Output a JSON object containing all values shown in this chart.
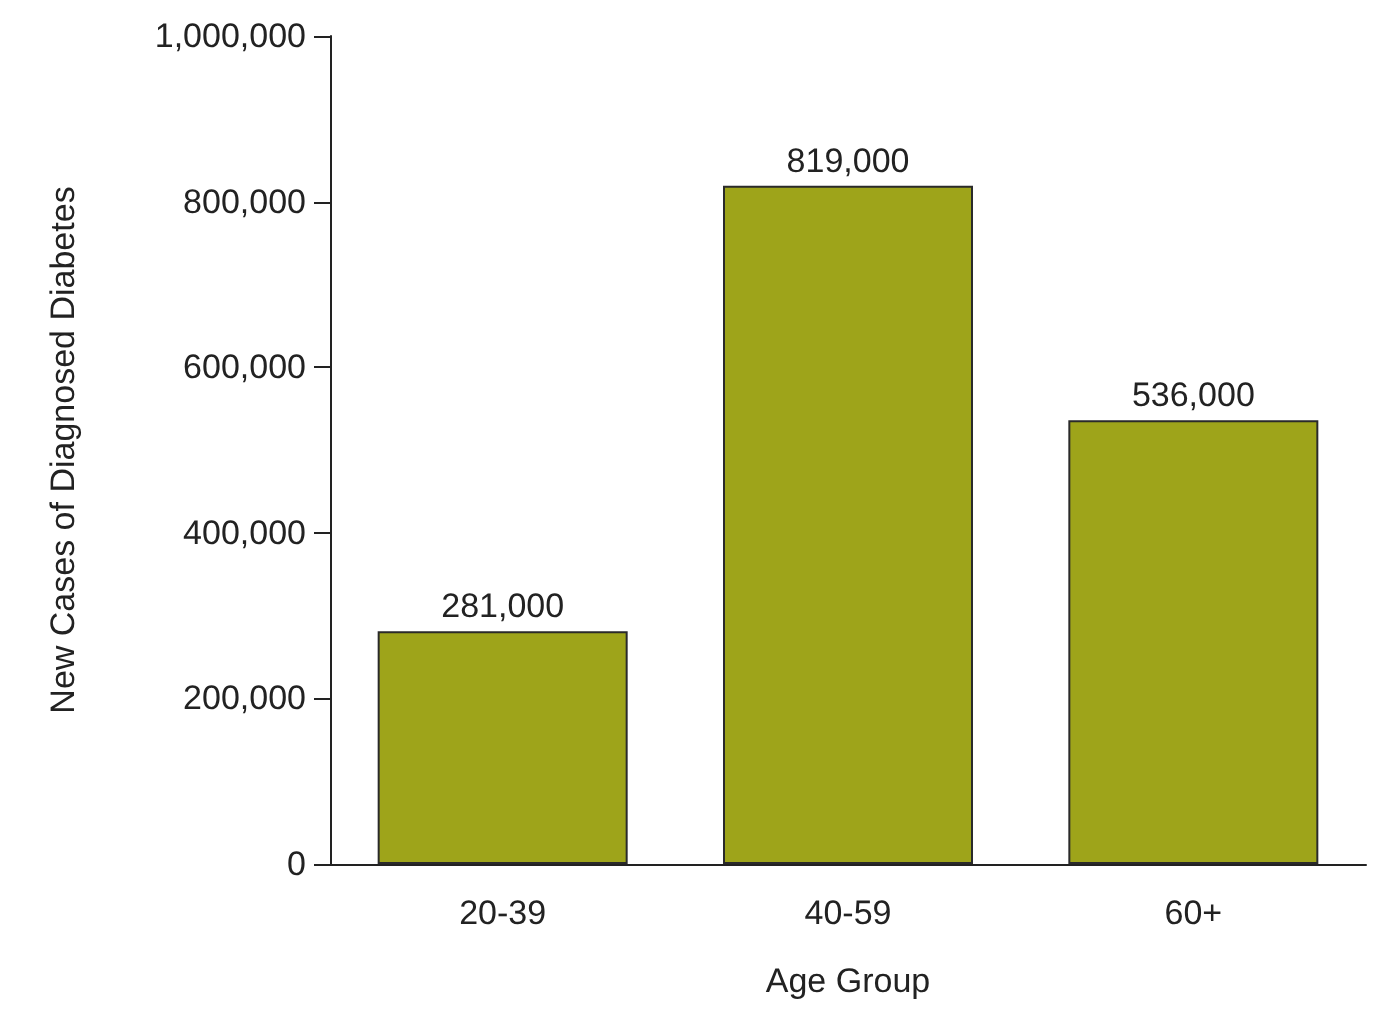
{
  "chart_data": {
    "type": "bar",
    "xlabel": "Age Group",
    "ylabel": "New Cases of Diagnosed Diabetes",
    "categories": [
      "20-39",
      "40-59",
      "60+"
    ],
    "values": [
      281000,
      819000,
      536000
    ],
    "color": "#9ea41a",
    "value_labels": [
      "281,000",
      "819,000",
      "536,000"
    ],
    "ylim": [
      0,
      1000000
    ],
    "yticks": [
      0,
      {
        "value": 200000,
        "label": "200,000"
      },
      {
        "value": 400000,
        "label": "400,000"
      },
      {
        "value": 600000,
        "label": "600,000"
      },
      {
        "value": 800000,
        "label": "800,000"
      },
      {
        "value": 1000000,
        "label": "1,000,000"
      }
    ]
  }
}
